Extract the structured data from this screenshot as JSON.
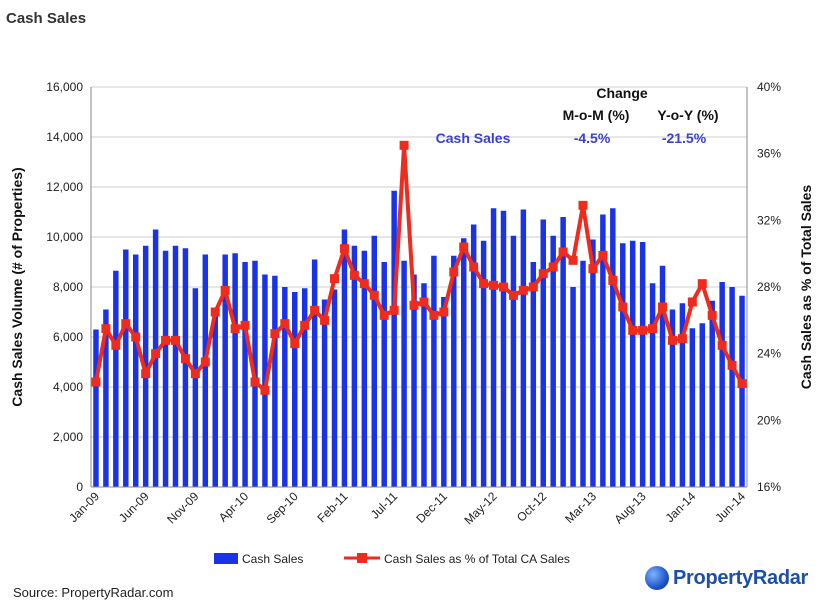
{
  "page_title": "Cash Sales",
  "source": "Source: PropertyRadar.com",
  "logo": {
    "icon": "globe-icon",
    "text": "PropertyRadar"
  },
  "annotation": {
    "header": "Change",
    "col1": "M-o-M (%)",
    "col2": "Y-o-Y (%)",
    "row_label": "Cash Sales",
    "mom": "-4.5%",
    "yoy": "-21.5%",
    "color": "#3a3fd8"
  },
  "chart_data": {
    "type": "bar",
    "title": "",
    "ylabel": "Cash Sales Volume (# of Properties)",
    "y2label": "Cash Sales as % of Total Sales",
    "ylim": [
      0,
      16000
    ],
    "y2lim": [
      16,
      40
    ],
    "y_ticks": [
      "0",
      "2,000",
      "4,000",
      "6,000",
      "8,000",
      "10,000",
      "12,000",
      "14,000",
      "16,000"
    ],
    "y2_ticks": [
      "16%",
      "20%",
      "24%",
      "28%",
      "32%",
      "36%",
      "40%"
    ],
    "x_tick_labels": [
      "Jan-09",
      "Jun-09",
      "Nov-09",
      "Apr-10",
      "Sep-10",
      "Feb-11",
      "Jul-11",
      "Dec-11",
      "May-12",
      "Oct-12",
      "Mar-13",
      "Aug-13",
      "Jan-14",
      "Jun-14"
    ],
    "x_tick_every": 5,
    "legend_position": "bottom",
    "colors": {
      "bars": "#1a33e6",
      "line": "#ee2b1c",
      "grid": "#cfcfcf"
    },
    "series": [
      {
        "name": "Cash Sales",
        "kind": "bar",
        "axis": "left",
        "values": [
          6300,
          7100,
          8650,
          9500,
          9300,
          9650,
          10300,
          9450,
          9650,
          9550,
          7950,
          9300,
          6950,
          9300,
          9350,
          9000,
          9050,
          8500,
          8450,
          8000,
          7800,
          7950,
          9100,
          7500,
          7900,
          10300,
          9650,
          9450,
          10050,
          9000,
          11850,
          9050,
          8500,
          8150,
          9250,
          7600,
          9250,
          9950,
          10500,
          9850,
          11150,
          11050,
          10050,
          11100,
          9000,
          10700,
          10050,
          10800,
          8000,
          9050,
          9900,
          10900,
          11150,
          9750,
          9850,
          9800,
          8150,
          8850,
          7100,
          7350,
          6350,
          6550,
          7450,
          8200,
          8000,
          7650
        ]
      },
      {
        "name": "Cash Sales as % of Total CA Sales",
        "kind": "line",
        "axis": "right",
        "values": [
          22.3,
          25.5,
          24.5,
          25.8,
          25.0,
          22.8,
          24.0,
          24.8,
          24.8,
          23.7,
          22.8,
          23.5,
          26.5,
          27.8,
          25.5,
          25.7,
          22.3,
          21.8,
          25.2,
          25.8,
          24.6,
          25.7,
          26.6,
          26.0,
          28.5,
          30.3,
          28.7,
          28.2,
          27.5,
          26.3,
          26.6,
          36.5,
          26.9,
          27.1,
          26.3,
          26.5,
          28.9,
          30.4,
          29.2,
          28.2,
          28.1,
          28.0,
          27.5,
          27.8,
          28.0,
          28.8,
          29.2,
          30.1,
          29.6,
          32.9,
          29.1,
          29.9,
          28.4,
          26.8,
          25.4,
          25.4,
          25.5,
          26.8,
          24.8,
          24.9,
          27.1,
          28.2,
          26.3,
          24.5,
          23.3,
          22.2
        ]
      }
    ]
  }
}
